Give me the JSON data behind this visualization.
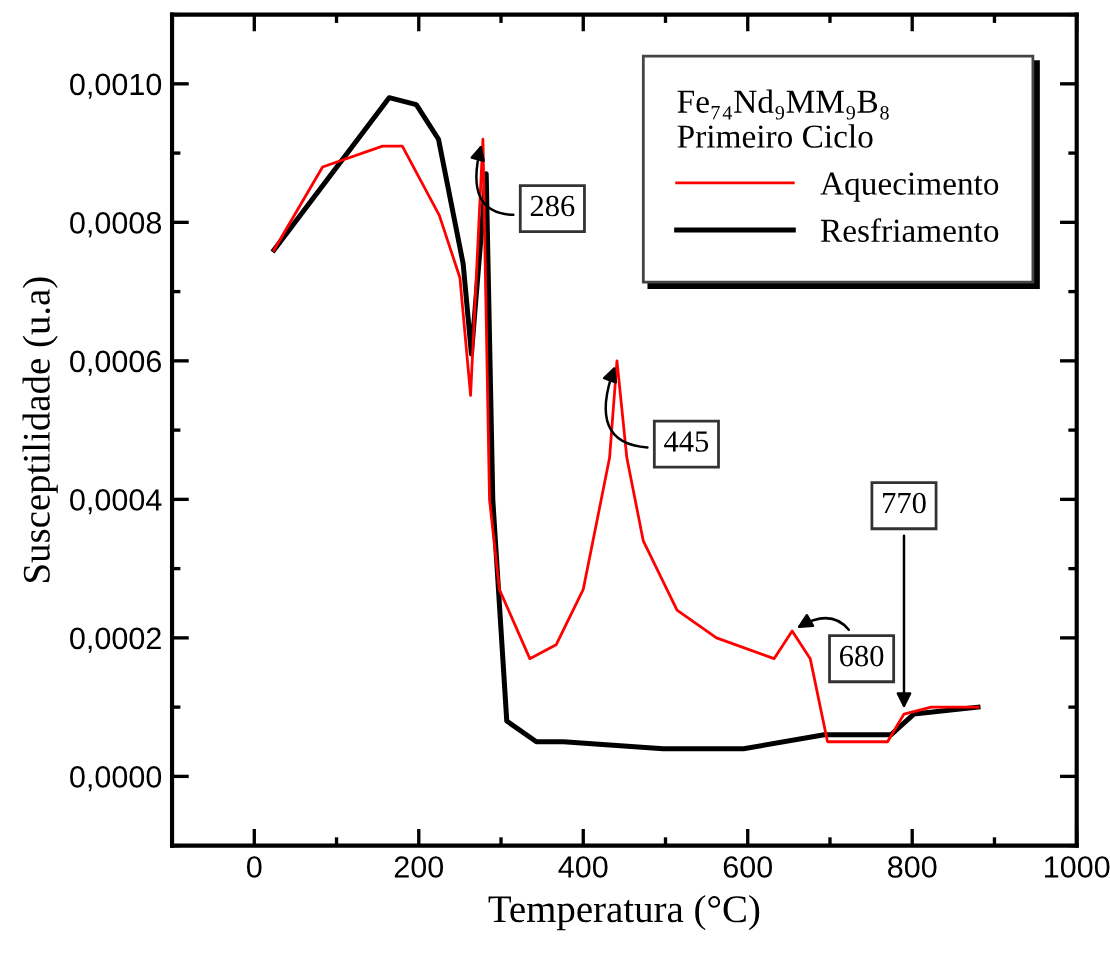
{
  "chart_data": {
    "type": "line",
    "xlabel": "Temperatura (°C)",
    "ylabel": "Susceptilidade (u.a)",
    "legend_title": "Fe₇₄Nd₉MM₉B₈\nPrimeiro Ciclo",
    "legend": "top right",
    "grid": false,
    "marker": "none",
    "line_style": "solid",
    "xlim": [
      -100,
      1000
    ],
    "xticks": [
      0,
      200,
      400,
      600,
      800,
      1000
    ],
    "ylim": [
      -0.0001,
      0.0011
    ],
    "yticks": [
      {
        "value": 0,
        "label": "0,0000"
      },
      {
        "value": 0.0002,
        "label": "0,0002"
      },
      {
        "value": 0.0004,
        "label": "0,0004"
      },
      {
        "value": 0.0006,
        "label": "0,0006"
      },
      {
        "value": 0.0008,
        "label": "0,0008"
      },
      {
        "value": 0.001,
        "label": "0,0010"
      }
    ],
    "series": [
      {
        "name": "Aquecimento",
        "color": "#ff0000",
        "x": [
          24,
          83,
          156,
          180,
          225,
          250,
          263,
          278,
          286,
          298,
          335,
          367,
          400,
          432,
          441,
          453,
          473,
          514,
          562,
          632,
          654,
          676,
          697,
          709,
          770,
          790,
          823,
          880
        ],
        "values": [
          0.00076,
          0.00088,
          0.00091,
          0.00091,
          0.00081,
          0.00072,
          0.00055,
          0.00092,
          0.0004,
          0.00027,
          0.00017,
          0.00019,
          0.00027,
          0.00046,
          0.0006,
          0.00046,
          0.00034,
          0.00024,
          0.0002,
          0.00017,
          0.00021,
          0.00017,
          5e-05,
          5e-05,
          5e-05,
          9e-05,
          0.0001,
          0.0001
        ]
      },
      {
        "name": "Resfriamento",
        "color": "#000000",
        "x": [
          24,
          164,
          197,
          224,
          254,
          264,
          282,
          290,
          307,
          343,
          376,
          497,
          595,
          693,
          774,
          802,
          880
        ],
        "values": [
          0.00076,
          0.00098,
          0.00097,
          0.00092,
          0.00074,
          0.00061,
          0.00087,
          0.0004,
          8e-05,
          5e-05,
          5e-05,
          4e-05,
          4e-05,
          6e-05,
          6e-05,
          9e-05,
          0.0001
        ]
      }
    ],
    "annotations": [
      {
        "text": "286",
        "x": 278,
        "y": 0.00092
      },
      {
        "text": "445",
        "x": 441,
        "y": 0.0006
      },
      {
        "text": "680",
        "x": 654,
        "y": 0.00021
      },
      {
        "text": "770",
        "x": 790,
        "y": 9e-05
      }
    ]
  }
}
